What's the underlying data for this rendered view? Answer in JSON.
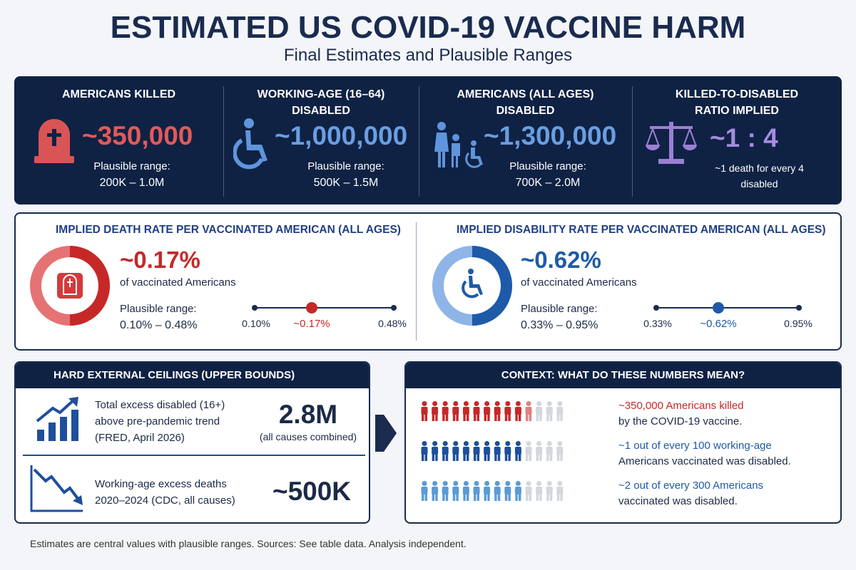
{
  "header": {
    "title": "ESTIMATED US COVID-19 VACCINE HARM",
    "subtitle": "Final Estimates and Plausible Ranges"
  },
  "headline_stats": [
    {
      "label": "AMERICANS KILLED",
      "value": "~350,000",
      "range_label": "Plausible range:",
      "range": "200K – 1.0M"
    },
    {
      "label": "WORKING-AGE (16–64) DISABLED",
      "value": "~1,000,000",
      "range_label": "Plausible range:",
      "range": "500K – 1.5M"
    },
    {
      "label": "AMERICANS (ALL AGES) DISABLED",
      "value": "~1,300,000",
      "range_label": "Plausible range:",
      "range": "700K – 2.0M"
    },
    {
      "label": "KILLED-TO-DISABLED RATIO IMPLIED",
      "value": "~1 : 4",
      "note": "~1 death for every 4 disabled"
    }
  ],
  "rates": [
    {
      "title": "IMPLIED DEATH RATE PER VACCINATED AMERICAN (ALL AGES)",
      "value": "~0.17%",
      "description": "of vaccinated Americans",
      "range_label": "Plausible range:",
      "range": "0.10% – 0.48%",
      "scale": {
        "low": "0.10%",
        "central": "~0.17%",
        "high": "0.48%"
      }
    },
    {
      "title": "IMPLIED DISABILITY RATE PER VACCINATED AMERICAN (ALL AGES)",
      "value": "~0.62%",
      "description": "of vaccinated Americans",
      "range_label": "Plausible range:",
      "range": "0.33% – 0.95%",
      "scale": {
        "low": "0.33%",
        "central": "~0.62%",
        "high": "0.95%"
      }
    }
  ],
  "ceilings": {
    "title": "HARD EXTERNAL CEILINGS (UPPER BOUNDS)",
    "items": [
      {
        "description": "Total excess disabled (16+) above pre-pandemic trend (FRED, April 2026)",
        "value": "2.8M",
        "note": "(all causes combined)"
      },
      {
        "description": "Working-age excess deaths 2020–2024 (CDC, all causes)",
        "value": "~500K"
      }
    ]
  },
  "context": {
    "title": "CONTEXT: WHAT DO THESE NUMBERS MEAN?",
    "rows": [
      {
        "highlight": "~350,000 Americans killed",
        "text": "by the COVID-19 vaccine."
      },
      {
        "highlight": "~1 out of every 100 working-age",
        "text": "Americans vaccinated was disabled."
      },
      {
        "highlight": "~2 out of every 300 Americans",
        "text": "vaccinated was disabled."
      }
    ]
  },
  "footer": "Estimates are central values with plausible ranges. Sources: See table data. Analysis independent."
}
